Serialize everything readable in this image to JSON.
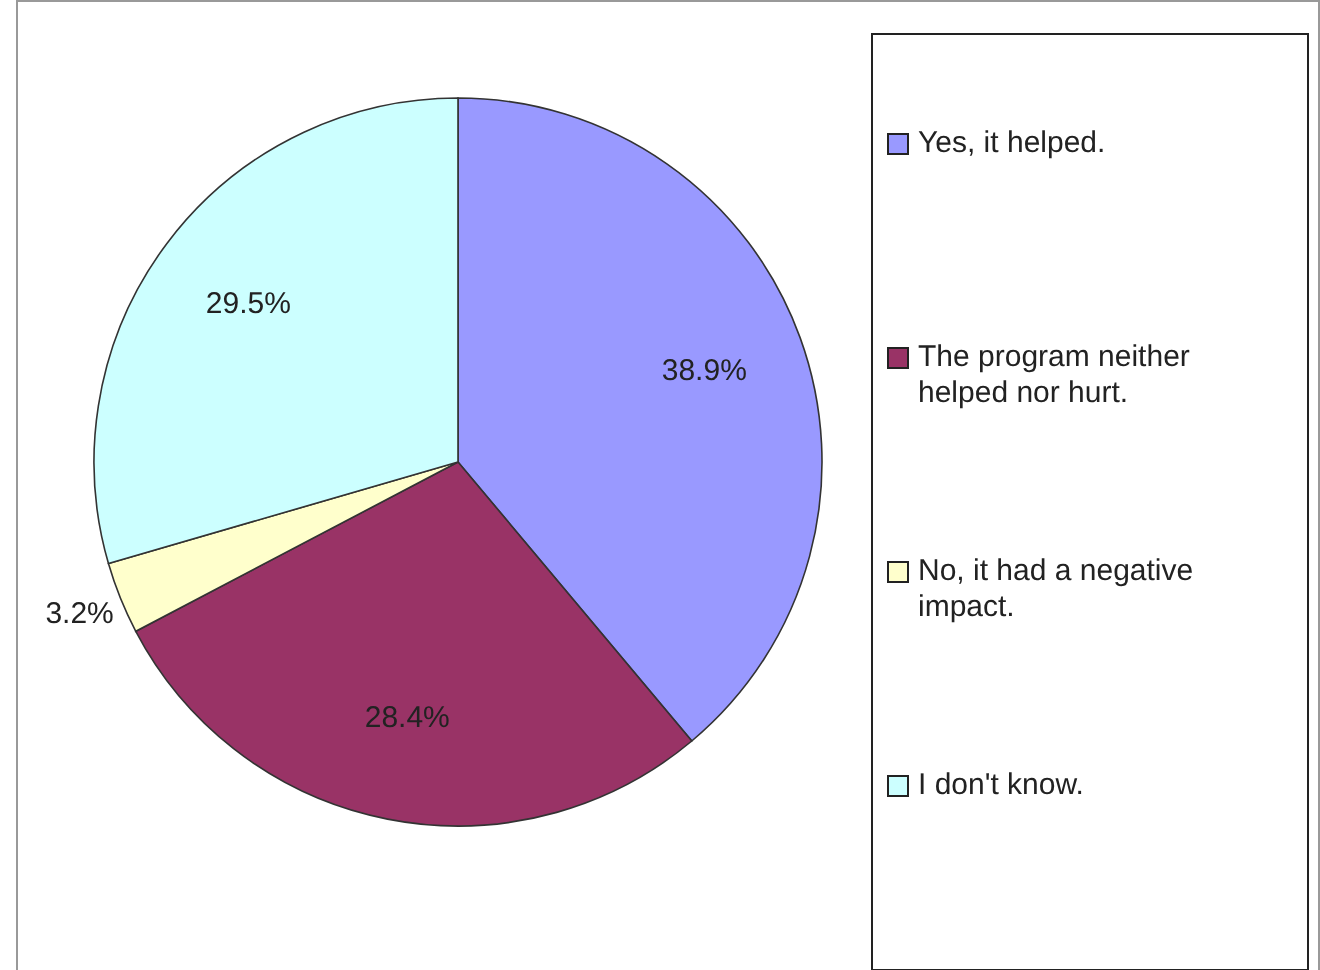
{
  "chart_data": {
    "type": "pie",
    "categories": [
      "Yes, it helped.",
      "The program neither helped nor hurt.",
      "No, it had a negative impact.",
      "I don't know."
    ],
    "values": [
      38.9,
      28.4,
      3.2,
      29.5
    ],
    "colors": [
      "#9999ff",
      "#993366",
      "#ffffcc",
      "#ccffff"
    ],
    "value_labels": [
      "38.9%",
      "28.4%",
      "3.2%",
      "29.5%"
    ],
    "legend": "right"
  }
}
